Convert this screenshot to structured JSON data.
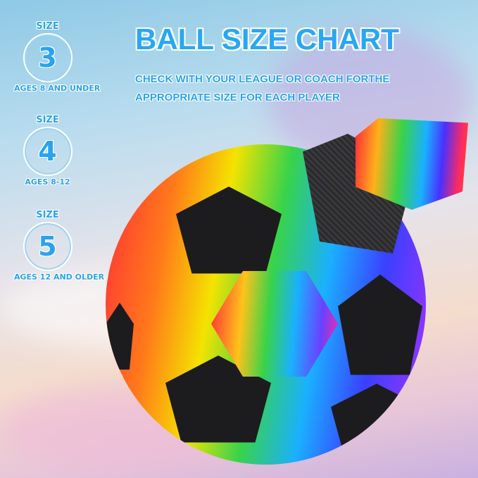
{
  "header": {
    "title": "BALL SIZE CHART",
    "subtitle_line1": "CHECK WITH YOUR LEAGUE OR COACH FORTHE",
    "subtitle_line2": "APPROPRIATE SIZE FOR EACH PLAYER"
  },
  "sizes": [
    {
      "label": "SIZE",
      "number": "3",
      "ages": "AGES 8 AND UNDER"
    },
    {
      "label": "SIZE",
      "number": "4",
      "ages": "AGES 8-12"
    },
    {
      "label": "SIZE",
      "number": "5",
      "ages": "AGES 12 AND OLDER"
    }
  ],
  "colors": {
    "accent": "#27a8f3"
  },
  "product": {
    "icon": "rainbow-soccer-ball-with-strap"
  }
}
